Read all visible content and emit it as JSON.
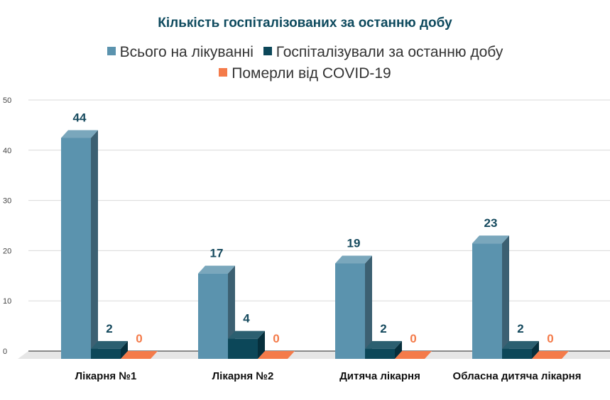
{
  "chart_data": {
    "type": "bar",
    "variant": "3d-grouped",
    "title": "Кількість госпіталізованих за останню добу",
    "categories": [
      "Лікарня №1",
      "Лікарня №2",
      "Дитяча лікарня",
      "Обласна дитяча лікарня"
    ],
    "series": [
      {
        "name": "Всього на лікуванні",
        "color": "#5b93ae",
        "side": "#3c6072",
        "top": "#7aa7bc",
        "label_color": "#164a5e",
        "values": [
          44,
          17,
          19,
          23
        ]
      },
      {
        "name": "Госпіталізували за останню добу",
        "color": "#0c4759",
        "side": "#062f3c",
        "top": "#2b5f70",
        "label_color": "#164a5e",
        "values": [
          2,
          4,
          2,
          2
        ]
      },
      {
        "name": "Померли від COVID-19",
        "color": "#f47b4a",
        "side": "#c85a30",
        "top": "#f47b4a",
        "label_color": "#f47b4a",
        "values": [
          0,
          0,
          0,
          0
        ]
      }
    ],
    "yticks": [
      0,
      10,
      20,
      30,
      40,
      50
    ],
    "ylim": [
      0,
      50
    ],
    "grid": true,
    "legend_position": "top"
  }
}
